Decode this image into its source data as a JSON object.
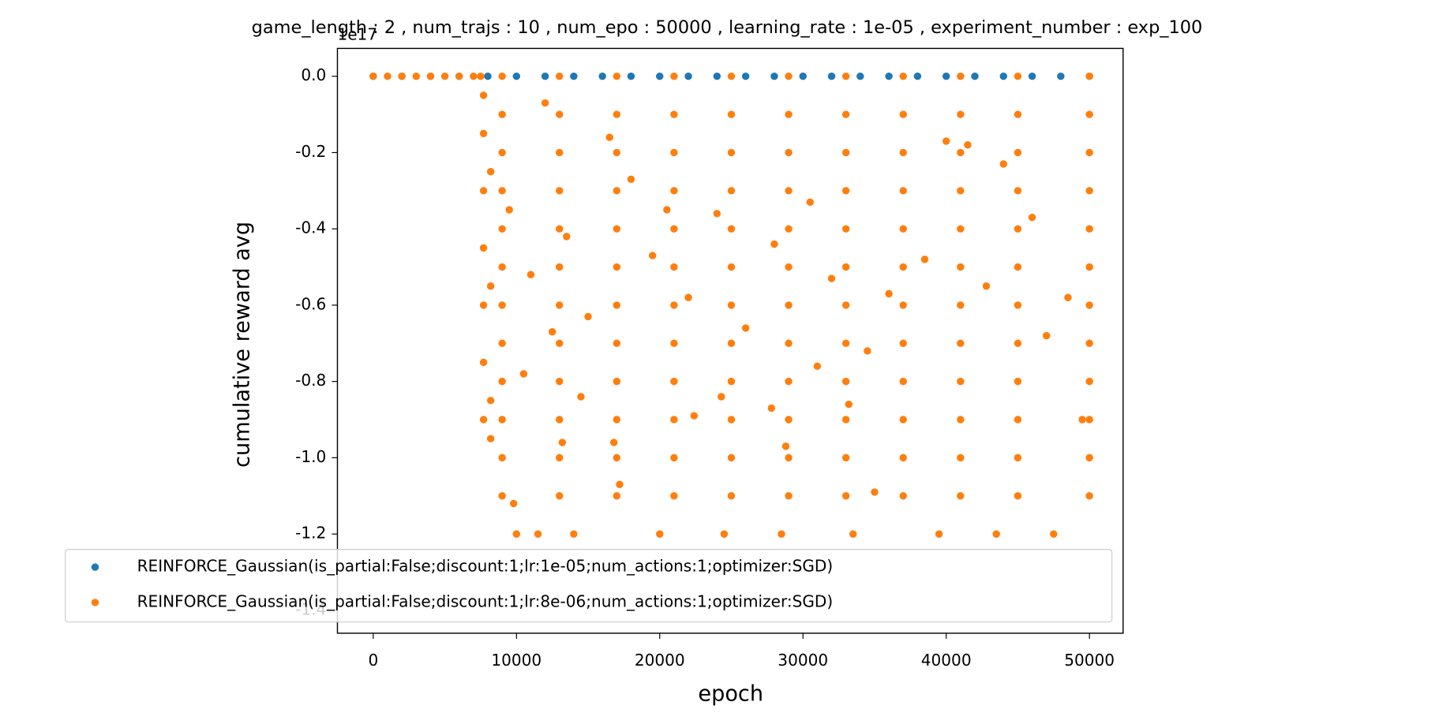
{
  "chart_data": {
    "type": "scatter",
    "title": "game_length : 2 , num_trajs : 10 , num_epo : 50000 , learning_rate : 1e-05 , experiment_number : exp_100",
    "x_label": "epoch",
    "y_label": "cumulative reward avg",
    "y_offset_label": "1e17",
    "xlim": [
      -2500,
      52350
    ],
    "ylim": [
      -1.46,
      0.073
    ],
    "xticks": [
      0,
      10000,
      20000,
      30000,
      40000,
      50000
    ],
    "yticks": [
      {
        "value": 0,
        "label": "0.0"
      },
      -0.2,
      -0.4,
      -0.6,
      -0.8,
      {
        "value": -1,
        "label": "-1.0"
      },
      -1.2,
      -1.4
    ],
    "legend": "lower left",
    "series": [
      {
        "name": "REINFORCE_Gaussian(is_partial:False;discount:1;lr:1e-05;num_actions:1;optimizer:SGD)",
        "color": "#1f77b4",
        "x": [
          0,
          2000,
          4000,
          6000,
          8000,
          10000,
          12000,
          14000,
          16000,
          18000,
          20000,
          22000,
          24000,
          26000,
          28000,
          30000,
          32000,
          34000,
          36000,
          38000,
          40000,
          42000,
          44000,
          46000,
          48000,
          50000
        ],
        "values": [
          0,
          0,
          0,
          0,
          0,
          0,
          0,
          0,
          0,
          0,
          0,
          0,
          0,
          0,
          0,
          0,
          0,
          0,
          0,
          0,
          0,
          0,
          0,
          0,
          0,
          0
        ]
      },
      {
        "name": "REINFORCE_Gaussian(is_partial:False;discount:1;lr:8e-06;num_actions:1;optimizer:SGD)",
        "color": "#ff7f0e",
        "x": [
          0,
          1000,
          2000,
          3000,
          4000,
          5000,
          6000,
          7000,
          7500,
          7700,
          7700,
          7700,
          7700,
          7700,
          7700,
          7700,
          8200,
          8200,
          8200,
          8200,
          9000,
          13000,
          17000,
          21000,
          25000,
          29000,
          33000,
          37000,
          41000,
          45000,
          50000,
          9000,
          13000,
          17000,
          21000,
          25000,
          29000,
          33000,
          37000,
          41000,
          45000,
          50000,
          9000,
          13000,
          17000,
          21000,
          25000,
          29000,
          33000,
          37000,
          41000,
          45000,
          50000,
          9000,
          13000,
          17000,
          21000,
          25000,
          29000,
          33000,
          37000,
          41000,
          45000,
          50000,
          9000,
          13000,
          17000,
          21000,
          25000,
          29000,
          33000,
          37000,
          41000,
          45000,
          50000,
          9000,
          13000,
          17000,
          21000,
          25000,
          29000,
          33000,
          37000,
          41000,
          45000,
          50000,
          9000,
          13000,
          17000,
          21000,
          25000,
          29000,
          33000,
          37000,
          41000,
          45000,
          50000,
          9000,
          13000,
          17000,
          21000,
          25000,
          29000,
          33000,
          37000,
          41000,
          45000,
          50000,
          9000,
          13000,
          17000,
          21000,
          25000,
          29000,
          33000,
          37000,
          41000,
          45000,
          50000,
          9000,
          13000,
          17000,
          21000,
          25000,
          29000,
          33000,
          37000,
          41000,
          45000,
          50000,
          9000,
          13000,
          17000,
          21000,
          25000,
          29000,
          33000,
          37000,
          41000,
          45000,
          50000,
          9000,
          13000,
          17000,
          21000,
          25000,
          29000,
          33000,
          37000,
          41000,
          45000,
          50000,
          10000,
          11500,
          14000,
          20000,
          24500,
          28500,
          33500,
          39500,
          43500,
          47500,
          12000,
          16500,
          9500,
          11000,
          13500,
          15000,
          18000,
          19500,
          22000,
          24000,
          26000,
          28000,
          30500,
          32000,
          34500,
          36000,
          38500,
          40000,
          41500,
          44000,
          46000,
          48500,
          10500,
          12500,
          14500,
          16800,
          17200,
          22400,
          24300,
          28800,
          31000,
          33200,
          35000,
          13200,
          9800,
          27800,
          20500,
          42800,
          47000,
          49500
        ],
        "values": [
          0,
          0,
          0,
          0,
          0,
          0,
          0,
          0,
          0,
          -0.05,
          -0.15,
          -0.3,
          -0.45,
          -0.6,
          -0.75,
          -0.9,
          -0.25,
          -0.55,
          -0.85,
          -0.95,
          0,
          0,
          0,
          0,
          0,
          0,
          0,
          0,
          0,
          0,
          0,
          -0.1,
          -0.1,
          -0.1,
          -0.1,
          -0.1,
          -0.1,
          -0.1,
          -0.1,
          -0.1,
          -0.1,
          -0.1,
          -0.2,
          -0.2,
          -0.2,
          -0.2,
          -0.2,
          -0.2,
          -0.2,
          -0.2,
          -0.2,
          -0.2,
          -0.2,
          -0.3,
          -0.3,
          -0.3,
          -0.3,
          -0.3,
          -0.3,
          -0.3,
          -0.3,
          -0.3,
          -0.3,
          -0.3,
          -0.4,
          -0.4,
          -0.4,
          -0.4,
          -0.4,
          -0.4,
          -0.4,
          -0.4,
          -0.4,
          -0.4,
          -0.4,
          -0.5,
          -0.5,
          -0.5,
          -0.5,
          -0.5,
          -0.5,
          -0.5,
          -0.5,
          -0.5,
          -0.5,
          -0.5,
          -0.6,
          -0.6,
          -0.6,
          -0.6,
          -0.6,
          -0.6,
          -0.6,
          -0.6,
          -0.6,
          -0.6,
          -0.6,
          -0.7,
          -0.7,
          -0.7,
          -0.7,
          -0.7,
          -0.7,
          -0.7,
          -0.7,
          -0.7,
          -0.7,
          -0.7,
          -0.8,
          -0.8,
          -0.8,
          -0.8,
          -0.8,
          -0.8,
          -0.8,
          -0.8,
          -0.8,
          -0.8,
          -0.8,
          -0.9,
          -0.9,
          -0.9,
          -0.9,
          -0.9,
          -0.9,
          -0.9,
          -0.9,
          -0.9,
          -0.9,
          -0.9,
          -1,
          -1,
          -1,
          -1,
          -1,
          -1,
          -1,
          -1,
          -1,
          -1,
          -1,
          -1.1,
          -1.1,
          -1.1,
          -1.1,
          -1.1,
          -1.1,
          -1.1,
          -1.1,
          -1.1,
          -1.1,
          -1.1,
          -1.2,
          -1.2,
          -1.2,
          -1.2,
          -1.2,
          -1.2,
          -1.2,
          -1.2,
          -1.2,
          -1.2,
          -0.07,
          -0.16,
          -0.35,
          -0.52,
          -0.42,
          -0.63,
          -0.27,
          -0.47,
          -0.58,
          -0.36,
          -0.66,
          -0.44,
          -0.33,
          -0.53,
          -0.72,
          -0.57,
          -0.48,
          -0.17,
          -0.18,
          -0.23,
          -0.37,
          -0.58,
          -0.78,
          -0.67,
          -0.84,
          -0.96,
          -1.07,
          -0.89,
          -0.84,
          -0.97,
          -0.76,
          -0.86,
          -1.09,
          -0.96,
          -1.12,
          -0.87,
          -0.35,
          -0.55,
          -0.68,
          -0.9
        ]
      }
    ]
  }
}
